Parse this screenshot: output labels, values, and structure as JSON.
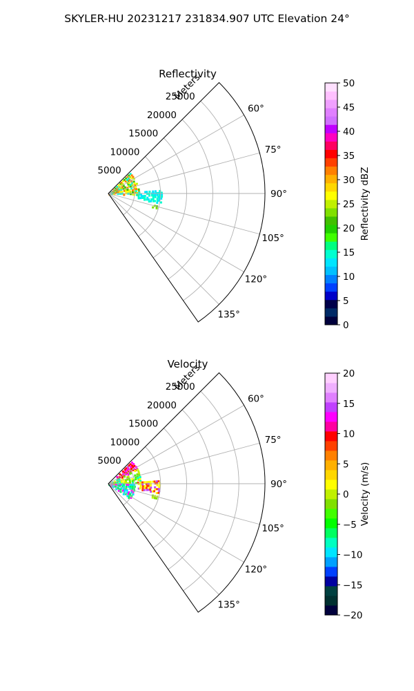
{
  "figure_title": "SKYLER-HU  20231217  231834.907 UTC Elevation 24°",
  "chart_data": [
    {
      "type": "polar-sector-heatmap",
      "title": "Reflectivity",
      "radial_label": "Meters",
      "radial_ticks": [
        "5000",
        "10000",
        "15000",
        "20000",
        "25000"
      ],
      "radial_tick_values": [
        5000,
        10000,
        15000,
        20000,
        25000
      ],
      "rlim": [
        0,
        30000
      ],
      "azimuth_range_deg": [
        45,
        145
      ],
      "azimuth_ticks": [
        "60°",
        "75°",
        "90°",
        "105°",
        "120°",
        "135°"
      ],
      "azimuth_tick_values": [
        60,
        75,
        90,
        105,
        120,
        135
      ],
      "grid": true,
      "colorbar": {
        "label": "Reflectivity dBZ",
        "ticks": [
          "0",
          "5",
          "10",
          "15",
          "20",
          "25",
          "30",
          "35",
          "40",
          "45",
          "50"
        ],
        "range": [
          0,
          50
        ],
        "colors": [
          "#00003c",
          "#002a66",
          "#00004a",
          "#0000c8",
          "#0040ff",
          "#0080ff",
          "#00c0ff",
          "#00e5ff",
          "#00ffd0",
          "#00ff80",
          "#40ff00",
          "#20d000",
          "#40c000",
          "#80e000",
          "#c0f000",
          "#ffff00",
          "#ffd700",
          "#ffb000",
          "#ff8000",
          "#ff4000",
          "#ff0000",
          "#ff0060",
          "#ff00c0",
          "#c000ff",
          "#d070ff",
          "#e080ff",
          "#f0a0ff",
          "#ffc0ff",
          "#ffe0ff"
        ]
      },
      "echo_regions": [
        {
          "az": [
            46,
            92
          ],
          "r": [
            0,
            5600
          ],
          "value": "15-30",
          "colors": [
            "#ffff00",
            "#c0f000",
            "#40c000",
            "#ff8000",
            "#00ffd0"
          ]
        },
        {
          "az": [
            86,
            100
          ],
          "r": [
            5600,
            10000
          ],
          "value": "10-15",
          "colors": [
            "#00ffd0",
            "#00e5ff"
          ]
        },
        {
          "az": [
            104,
            108
          ],
          "r": [
            8500,
            9500
          ],
          "value": "15-20",
          "colors": [
            "#40c000",
            "#80e000"
          ]
        }
      ]
    },
    {
      "type": "polar-sector-heatmap",
      "title": "Velocity",
      "radial_label": "Meters",
      "radial_ticks": [
        "5000",
        "10000",
        "15000",
        "20000",
        "25000"
      ],
      "radial_tick_values": [
        5000,
        10000,
        15000,
        20000,
        25000
      ],
      "rlim": [
        0,
        30000
      ],
      "azimuth_range_deg": [
        45,
        145
      ],
      "azimuth_ticks": [
        "60°",
        "75°",
        "90°",
        "105°",
        "120°",
        "135°"
      ],
      "azimuth_tick_values": [
        60,
        75,
        90,
        105,
        120,
        135
      ],
      "grid": true,
      "colorbar": {
        "label": "Velocity (m/s)",
        "ticks": [
          "−20",
          "−15",
          "−10",
          "−5",
          "0",
          "5",
          "10",
          "15",
          "20"
        ],
        "range": [
          -20,
          20
        ],
        "colors": [
          "#00003c",
          "#003030",
          "#004040",
          "#0000a0",
          "#0040ff",
          "#00a0ff",
          "#00e5ff",
          "#00ffc0",
          "#00ff60",
          "#00ff00",
          "#40ff00",
          "#80e000",
          "#c0f000",
          "#ffff00",
          "#ffd700",
          "#ffb000",
          "#ff8000",
          "#ff4000",
          "#ff0000",
          "#ff00a0",
          "#ff00ff",
          "#c040ff",
          "#e080ff",
          "#f0b0ff",
          "#ffd0ff"
        ]
      },
      "echo_regions": [
        {
          "az": [
            46,
            62
          ],
          "r": [
            2000,
            6200
          ],
          "value": "10-15",
          "colors": [
            "#ff00ff",
            "#ff0000"
          ]
        },
        {
          "az": [
            62,
            90
          ],
          "r": [
            0,
            6000
          ],
          "value": "-5-5",
          "colors": [
            "#ffff00",
            "#c0f000",
            "#80e000",
            "#40ff00",
            "#00ffc0"
          ]
        },
        {
          "az": [
            90,
            125
          ],
          "r": [
            0,
            5000
          ],
          "value": "-15-12",
          "colors": [
            "#ff00ff",
            "#00e5ff",
            "#00ff60"
          ]
        },
        {
          "az": [
            86,
            100
          ],
          "r": [
            5500,
            9500
          ],
          "value": "0-10",
          "colors": [
            "#ffff00",
            "#ff4000",
            "#c040ff"
          ]
        },
        {
          "az": [
            104,
            108
          ],
          "r": [
            8500,
            9500
          ],
          "value": "-5",
          "colors": [
            "#c0f000",
            "#80e000"
          ]
        }
      ]
    }
  ]
}
